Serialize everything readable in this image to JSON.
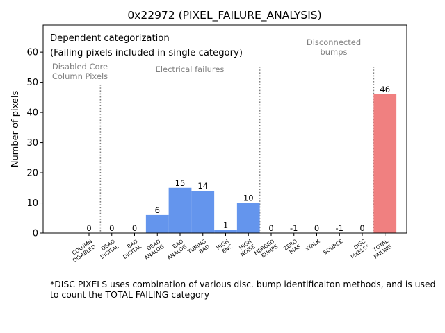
{
  "chart_data": {
    "type": "bar",
    "title": "0x22972 (PIXEL_FAILURE_ANALYSIS)",
    "xlabel": "",
    "ylabel": "Number of pixels",
    "ylim": [
      0,
      69
    ],
    "yticks": [
      0,
      10,
      20,
      30,
      40,
      50,
      60
    ],
    "grid": false,
    "categories": [
      "COLUMN\nDISABLED",
      "DEAD\nDIGITAL",
      "BAD\nDIGITAL",
      "DEAD\nANALOG",
      "BAD\nANALOG",
      "TUNING\nBAD",
      "HIGH\nENC",
      "HIGH\nNOISE",
      "MERGED\nBUMPS",
      "ZERO\nBIAS",
      "XTALK",
      "SOURCE",
      "DISC\nPIXELS*",
      "TOTAL\nFAILING"
    ],
    "values": [
      0,
      0,
      0,
      6,
      15,
      14,
      1,
      10,
      0,
      -1,
      0,
      -1,
      0,
      46
    ],
    "data_labels": [
      "0",
      "0",
      "0",
      "6",
      "15",
      "14",
      "1",
      "10",
      "0",
      "-1",
      "0",
      "-1",
      "0",
      "46"
    ],
    "colors": {
      "default": "#6495ED",
      "total": "#F08080",
      "separator": "#808080",
      "group_label": "#808080",
      "axis": "#000000"
    },
    "separators_after_index": [
      0,
      7,
      12
    ],
    "groups": [
      {
        "name": "column-group",
        "label": "Disabled Core\nColumn Pixels"
      },
      {
        "name": "electrical-group",
        "label": "Electrical failures"
      },
      {
        "name": "disconnected-group",
        "label": "Disconnected\nbumps"
      }
    ],
    "annotations": [
      "Dependent categorization",
      "(Failing pixels included in single category)"
    ]
  },
  "footnote": "*DISC PIXELS uses combination of various disc. bump identificaiton methods, and is used\nto count the TOTAL FAILING category"
}
